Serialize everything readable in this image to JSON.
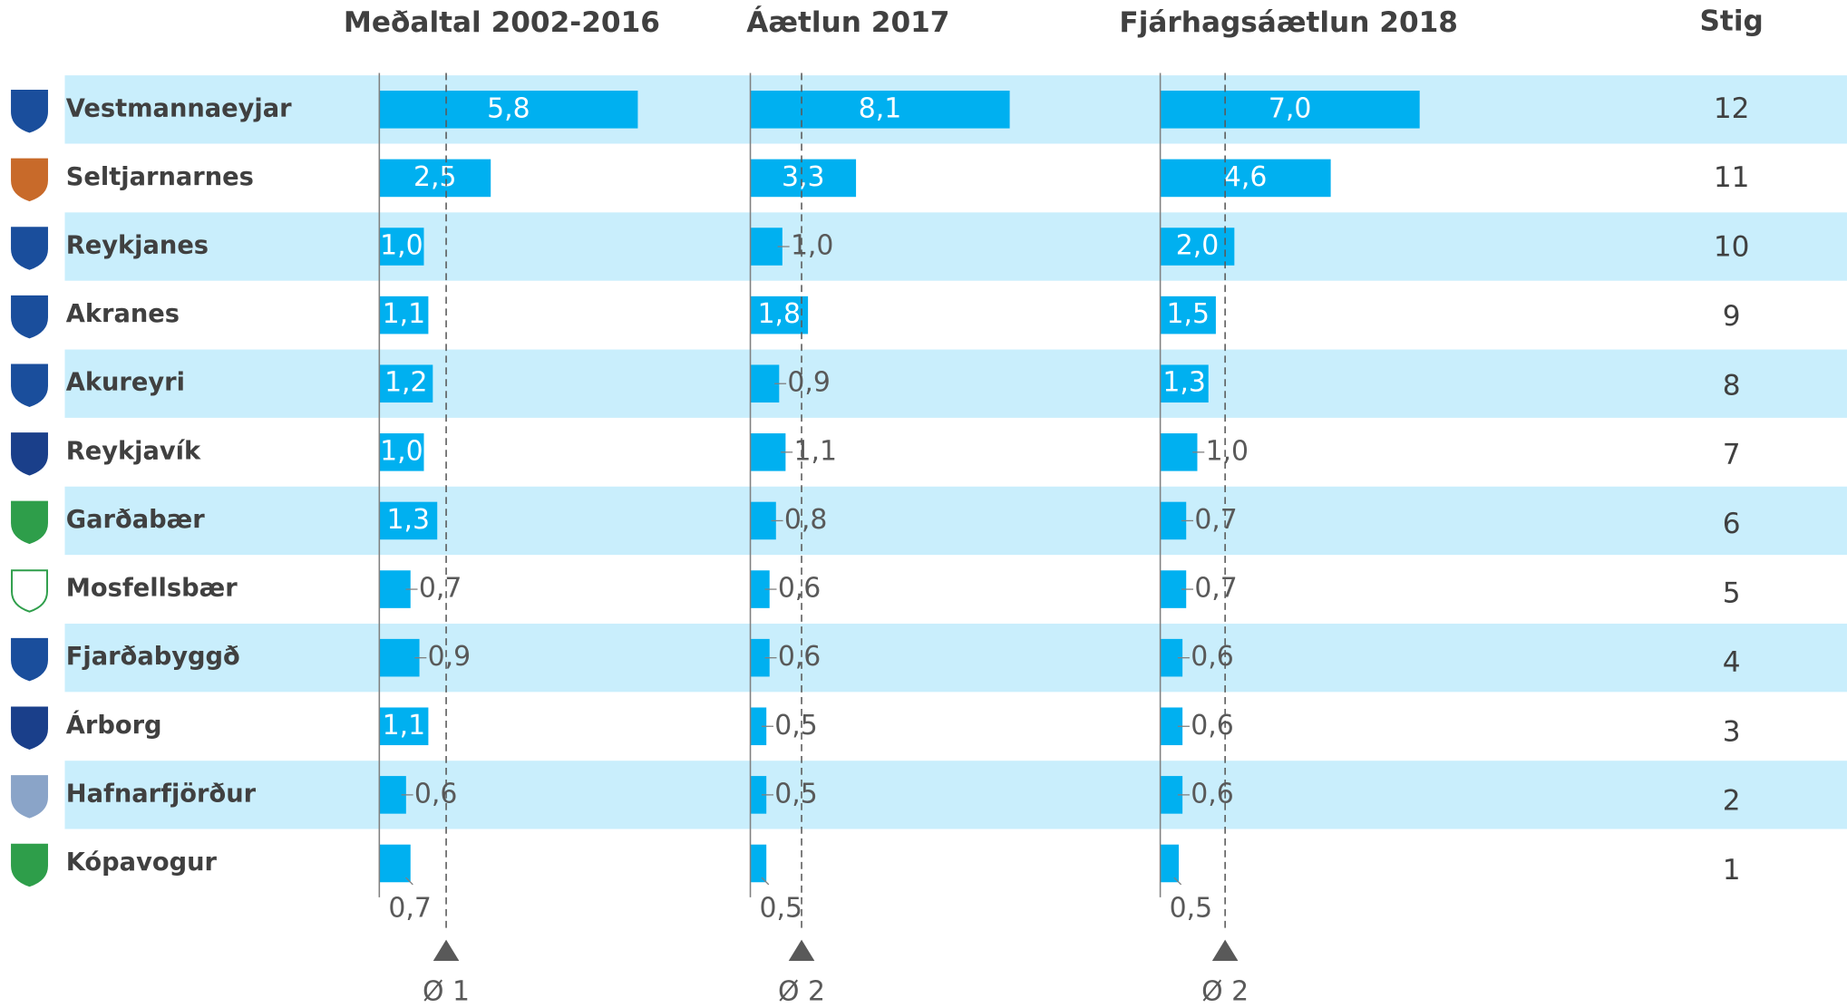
{
  "chart_data": {
    "type": "bar",
    "categories": [
      "Vestmannaeyjar",
      "Seltjarnarnes",
      "Reykjanes",
      "Akranes",
      "Akureyri",
      "Reykjavík",
      "Garðabær",
      "Mosfellsbær",
      "Fjarðabyggð",
      "Árborg",
      "Hafnarfjörður",
      "Kópavogur"
    ],
    "series": [
      {
        "name": "Meðaltal 2002-2016",
        "color": "#00b0f0",
        "xlim": [
          0,
          7.4
        ],
        "reference_line": 1.5,
        "reference_label": "Ø 1",
        "values": [
          5.8,
          2.5,
          1.0,
          1.1,
          1.2,
          1.0,
          1.3,
          0.7,
          0.9,
          1.1,
          0.6,
          0.7
        ],
        "value_labels": [
          "5,8",
          "2,5",
          "1,0",
          "1,1",
          "1,2",
          "1,0",
          "1,3",
          "0,7",
          "0,9",
          "1,1",
          "0,6",
          "0,7"
        ]
      },
      {
        "name": "Áætlun 2017",
        "color": "#00b0f0",
        "xlim": [
          0,
          10.3
        ],
        "reference_line": 1.6,
        "reference_label": "Ø 2",
        "values": [
          8.1,
          3.3,
          1.0,
          1.8,
          0.9,
          1.1,
          0.8,
          0.6,
          0.6,
          0.5,
          0.5,
          0.5
        ],
        "value_labels": [
          "8,1",
          "3,3",
          "1,0",
          "1,8",
          "0,9",
          "1,1",
          "0,8",
          "0,6",
          "0,6",
          "0,5",
          "0,5",
          "0,5"
        ]
      },
      {
        "name": "Fjárhagsáætlun 2018",
        "color": "#00b0f0",
        "xlim": [
          0,
          8.9
        ],
        "reference_line": 1.75,
        "reference_label": "Ø 2",
        "values": [
          7.0,
          4.6,
          2.0,
          1.5,
          1.3,
          1.0,
          0.7,
          0.7,
          0.6,
          0.6,
          0.6,
          0.5
        ],
        "value_labels": [
          "7,0",
          "4,6",
          "2,0",
          "1,5",
          "1,3",
          "1,0",
          "0,7",
          "0,7",
          "0,6",
          "0,6",
          "0,6",
          "0,5"
        ]
      }
    ],
    "score_title": "Stig",
    "scores": [
      12,
      11,
      10,
      9,
      8,
      7,
      6,
      5,
      4,
      3,
      2,
      1
    ]
  }
}
